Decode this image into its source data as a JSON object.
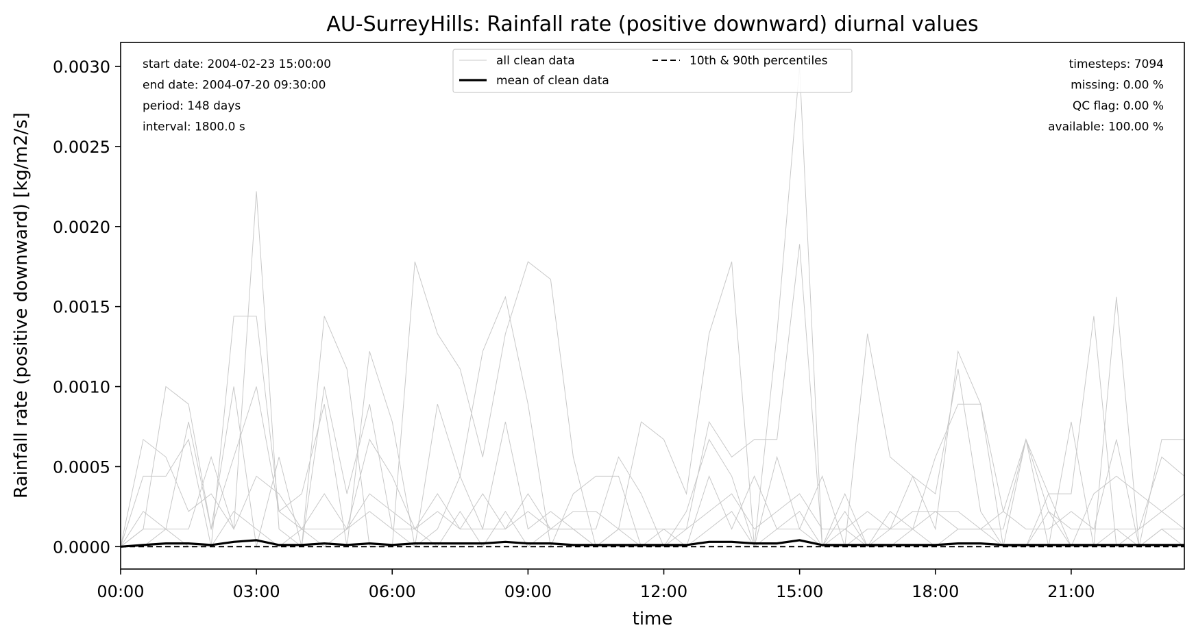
{
  "chart_data": {
    "type": "line",
    "title": "AU-SurreyHills: Rainfall rate (positive downward) diurnal values",
    "xlabel": "time",
    "ylabel": "Rainfall rate (positive downward) [kg/m2/s]",
    "xlim": [
      0,
      23.5
    ],
    "ylim": [
      -0.00014,
      0.00315
    ],
    "x_ticks": [
      0,
      3,
      6,
      9,
      12,
      15,
      18,
      21
    ],
    "x_tick_labels": [
      "00:00",
      "03:00",
      "06:00",
      "09:00",
      "12:00",
      "15:00",
      "18:00",
      "21:00"
    ],
    "y_ticks": [
      0,
      0.0005,
      0.001,
      0.0015,
      0.002,
      0.0025,
      0.003
    ],
    "y_tick_labels": [
      "0.0000",
      "0.0005",
      "0.0010",
      "0.0015",
      "0.0020",
      "0.0025",
      "0.0030"
    ],
    "grid": false,
    "legend_position": "top-center",
    "legend": [
      {
        "label": "all clean data",
        "style": "thin-gray"
      },
      {
        "label": "mean of clean data",
        "style": "thick-black"
      },
      {
        "label": "10th & 90th percentiles",
        "style": "dashed-black"
      }
    ],
    "info_left": [
      "start date: 2004-02-23 15:00:00",
      "end date: 2004-07-20 09:30:00",
      "period: 148 days",
      "interval: 1800.0 s"
    ],
    "info_right": [
      "timesteps: 7094",
      "missing: 0.00 %",
      "QC flag: 0.00 %",
      "available: 100.00 %"
    ],
    "colors": {
      "clean": "#c8c8c8",
      "mean": "#000000",
      "percentile": "#000000"
    },
    "series": [
      {
        "style": "thin-gray",
        "x": [
          0,
          0.5,
          1,
          1.5,
          2,
          2.5,
          3,
          3.5,
          4,
          4.5,
          5,
          5.5,
          6,
          6.5,
          7,
          7.5,
          8,
          8.5,
          9,
          9.5,
          10,
          10.5,
          11,
          11.5,
          12,
          12.5,
          13,
          13.5,
          14,
          14.5,
          15,
          15.5,
          16,
          16.5,
          17,
          17.5,
          18,
          18.5,
          19,
          19.5,
          20,
          20.5,
          21,
          21.5,
          22,
          22.5,
          23,
          23.5
        ],
        "y": [
          0,
          0.00067,
          0.00056,
          0.00022,
          0.00033,
          0.00011,
          0.00222,
          0.00011,
          0,
          0.00144,
          0.00111,
          0,
          0,
          0.00178,
          0.00133,
          0.00111,
          0.00056,
          0.00133,
          0.00178,
          0.00167,
          0.00056,
          0,
          0.00011,
          0.00078,
          0.00067,
          0.00033,
          0.00133,
          0.00178,
          0,
          0.00133,
          0.003,
          0,
          0,
          0.00133,
          0.00056,
          0.00044,
          0.00011,
          0.00122,
          0.00089,
          0,
          0.00067,
          0,
          0.00078,
          0,
          0.00156,
          0,
          0.00067,
          0.00067
        ]
      },
      {
        "style": "thin-gray",
        "x": [
          0,
          0.5,
          1,
          1.5,
          2,
          2.5,
          3,
          3.5,
          4,
          4.5,
          5,
          5.5,
          6,
          6.5,
          7,
          7.5,
          8,
          8.5,
          9,
          9.5,
          10,
          10.5,
          11,
          11.5,
          12,
          12.5,
          13,
          13.5,
          14,
          14.5,
          15,
          15.5,
          16,
          16.5,
          17,
          17.5,
          18,
          18.5,
          19,
          19.5,
          20,
          20.5,
          21,
          21.5,
          22,
          22.5,
          23,
          23.5
        ],
        "y": [
          0,
          0.00044,
          0.00044,
          0.00067,
          0,
          0.00144,
          0.00144,
          0.00022,
          0.00033,
          0.00089,
          0,
          0.00122,
          0.00078,
          0,
          0.00089,
          0.00044,
          0.00122,
          0.00156,
          0.00089,
          0,
          0.00033,
          0.00044,
          0.00044,
          0,
          0,
          0.00011,
          0.00078,
          0.00056,
          0.00067,
          0.00067,
          0.00189,
          0,
          0.00033,
          0,
          0.00011,
          0.00044,
          0.00033,
          0.00111,
          0.00022,
          0,
          0,
          0.00033,
          0.00033,
          0.00144,
          0,
          0.00011,
          0.00056,
          0.00044
        ]
      },
      {
        "style": "thin-gray",
        "x": [
          0,
          0.5,
          1,
          1.5,
          2,
          2.5,
          3,
          3.5,
          4,
          4.5,
          5,
          5.5,
          6,
          6.5,
          7,
          7.5,
          8,
          8.5,
          9,
          9.5,
          10,
          10.5,
          11,
          11.5,
          12,
          12.5,
          13,
          13.5,
          14,
          14.5,
          15,
          15.5,
          16,
          16.5,
          17,
          17.5,
          18,
          18.5,
          19,
          19.5,
          20,
          20.5,
          21,
          21.5,
          22,
          22.5,
          23,
          23.5
        ],
        "y": [
          0,
          0.00011,
          0.001,
          0.00089,
          0.00011,
          0.001,
          0,
          0.00056,
          0,
          0.001,
          0.00033,
          0.00089,
          0.00011,
          0,
          0.00011,
          0.00044,
          0.00011,
          0.00078,
          0.00011,
          0.00022,
          0.00011,
          0.00011,
          0.00056,
          0.00033,
          0,
          0.00022,
          0.00067,
          0.00044,
          0,
          0.00056,
          0.00011,
          0,
          0.00011,
          0,
          0.00022,
          0.00011,
          0.00056,
          0.00089,
          0.00089,
          0.00022,
          0.00067,
          0.00033,
          0,
          0.00033,
          0.00044,
          0.00033,
          0.00022,
          0.00033
        ]
      },
      {
        "style": "thin-gray",
        "x": [
          0,
          0.5,
          1,
          1.5,
          2,
          2.5,
          3,
          3.5,
          4,
          4.5,
          5,
          5.5,
          6,
          6.5,
          7,
          7.5,
          8,
          8.5,
          9,
          9.5,
          10,
          10.5,
          11,
          11.5,
          12,
          12.5,
          13,
          13.5,
          14,
          14.5,
          15,
          15.5,
          16,
          16.5,
          17,
          17.5,
          18,
          18.5,
          19,
          19.5,
          20,
          20.5,
          21,
          21.5,
          22,
          22.5,
          23,
          23.5
        ],
        "y": [
          0,
          0.00022,
          0.00011,
          0.00078,
          0.00011,
          0.00056,
          0.001,
          0.00022,
          0.00011,
          0.00033,
          0.00011,
          0.00067,
          0.00044,
          0.00011,
          0.00033,
          0.00011,
          0.00033,
          0.00011,
          0.00033,
          0.00011,
          0.00022,
          0.00022,
          0.00011,
          0.00011,
          0.00011,
          0,
          0.00044,
          0.00011,
          0.00044,
          0.00011,
          0.00011,
          0.00044,
          0,
          0.00011,
          0.00011,
          0.00022,
          0.00022,
          0.00011,
          0.00011,
          0.00011,
          0.00067,
          0.00022,
          0.00011,
          0.00011,
          0.00067,
          0,
          0.00011,
          0.00011
        ]
      },
      {
        "style": "thin-gray",
        "x": [
          0,
          0.5,
          1,
          1.5,
          2,
          2.5,
          3,
          3.5,
          4,
          4.5,
          5,
          5.5,
          6,
          6.5,
          7,
          7.5,
          8,
          8.5,
          9,
          9.5,
          10,
          10.5,
          11,
          11.5,
          12,
          12.5,
          13,
          13.5,
          14,
          14.5,
          15,
          15.5,
          16,
          16.5,
          17,
          17.5,
          18,
          18.5,
          19,
          19.5,
          20,
          20.5,
          21,
          21.5,
          22,
          22.5,
          23,
          23.5
        ],
        "y": [
          0,
          0.00011,
          0.00011,
          0.00011,
          0.00056,
          0.00011,
          0.00044,
          0.00033,
          0.00011,
          0.00011,
          0.00011,
          0.00033,
          0.00022,
          0.00011,
          0.00022,
          0.00011,
          0.00011,
          0.00011,
          0.00022,
          0.00011,
          0.00011,
          0,
          0.00011,
          0,
          0.00011,
          0.00011,
          0.00022,
          0.00033,
          0.00011,
          0.00022,
          0.00033,
          0.00011,
          0.00011,
          0.00022,
          0.00011,
          0.00011,
          0.00022,
          0.00022,
          0.00011,
          0.00022,
          0.00011,
          0.00011,
          0.00022,
          0.00011,
          0.00011,
          0.00011,
          0.00022,
          0.00011
        ]
      },
      {
        "style": "thin-gray",
        "x": [
          0,
          0.5,
          1,
          1.5,
          2,
          2.5,
          3,
          3.5,
          4,
          4.5,
          5,
          5.5,
          6,
          6.5,
          7,
          7.5,
          8,
          8.5,
          9,
          9.5,
          10,
          10.5,
          11,
          11.5,
          12,
          12.5,
          13,
          13.5,
          14,
          14.5,
          15,
          15.5,
          16,
          16.5,
          17,
          17.5,
          18,
          18.5,
          19,
          19.5,
          20,
          20.5,
          21,
          21.5,
          22,
          22.5,
          23,
          23.5
        ],
        "y": [
          0,
          0,
          0.00011,
          0,
          0,
          0.00022,
          0.00011,
          0,
          0.00011,
          0,
          0.00011,
          0.00022,
          0.00011,
          0.00011,
          0,
          0.00022,
          0,
          0.00022,
          0,
          0.00011,
          0.00011,
          0,
          0,
          0,
          0,
          0,
          0.00011,
          0.00022,
          0,
          0.00011,
          0.00022,
          0,
          0.00022,
          0,
          0,
          0.00011,
          0,
          0.00011,
          0.00011,
          0,
          0,
          0.00022,
          0,
          0,
          0.00011,
          0,
          0.00011,
          0
        ]
      },
      {
        "style": "thick-black",
        "x": [
          0,
          0.5,
          1,
          1.5,
          2,
          2.5,
          3,
          3.5,
          4,
          4.5,
          5,
          5.5,
          6,
          6.5,
          7,
          7.5,
          8,
          8.5,
          9,
          9.5,
          10,
          10.5,
          11,
          11.5,
          12,
          12.5,
          13,
          13.5,
          14,
          14.5,
          15,
          15.5,
          16,
          16.5,
          17,
          17.5,
          18,
          18.5,
          19,
          19.5,
          20,
          20.5,
          21,
          21.5,
          22,
          22.5,
          23,
          23.5
        ],
        "y": [
          0,
          1e-05,
          2e-05,
          2e-05,
          1e-05,
          3e-05,
          4e-05,
          1e-05,
          1e-05,
          2e-05,
          1e-05,
          2e-05,
          1e-05,
          2e-05,
          2e-05,
          2e-05,
          2e-05,
          3e-05,
          2e-05,
          2e-05,
          1e-05,
          1e-05,
          1e-05,
          1e-05,
          1e-05,
          1e-05,
          3e-05,
          3e-05,
          2e-05,
          2e-05,
          4e-05,
          1e-05,
          1e-05,
          1e-05,
          1e-05,
          1e-05,
          1e-05,
          2e-05,
          2e-05,
          1e-05,
          1e-05,
          1e-05,
          1e-05,
          1e-05,
          1e-05,
          1e-05,
          1e-05,
          1e-05
        ]
      },
      {
        "style": "dashed-black",
        "x": [
          0,
          23.5
        ],
        "y": [
          0,
          0
        ]
      }
    ]
  }
}
